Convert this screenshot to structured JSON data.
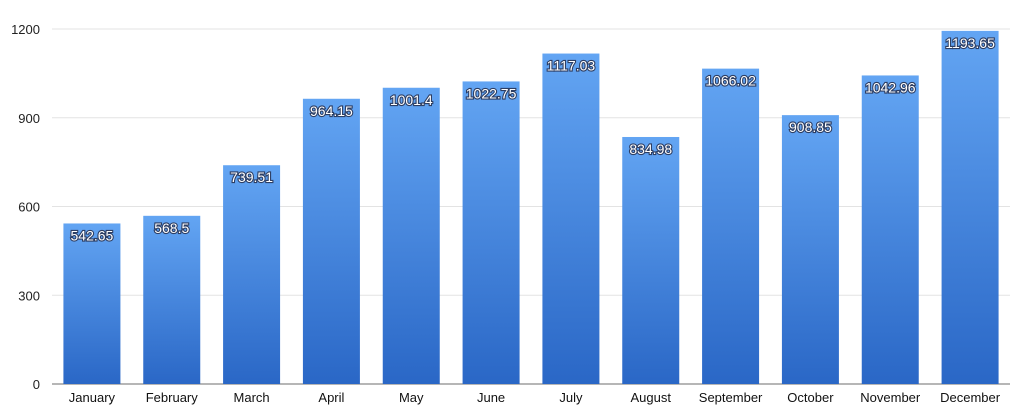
{
  "chart_data": {
    "type": "bar",
    "categories": [
      "January",
      "February",
      "March",
      "April",
      "May",
      "June",
      "July",
      "August",
      "September",
      "October",
      "November",
      "December"
    ],
    "values": [
      542.65,
      568.5,
      739.51,
      964.15,
      1001.4,
      1022.75,
      1117.03,
      834.98,
      1066.02,
      908.85,
      1042.96,
      1193.65
    ],
    "value_labels": [
      "542.65",
      "568.5",
      "739.51",
      "964.15",
      "1001.4",
      "1022.75",
      "1117.03",
      "834.98",
      "1066.02",
      "908.85",
      "1042.96",
      "1193.65"
    ],
    "title": "",
    "xlabel": "",
    "ylabel": "",
    "ylim": [
      0,
      1200
    ],
    "yticks": [
      0,
      300,
      600,
      900,
      1200
    ],
    "ytick_labels": [
      "0",
      "300",
      "600",
      "900",
      "1200"
    ],
    "grid": true,
    "legend": "none",
    "colors": {
      "bar_top": "#63a5f3",
      "bar_bottom": "#2a67c6",
      "grid": "#e3e3e3",
      "axis": "#6e6e6e"
    }
  }
}
